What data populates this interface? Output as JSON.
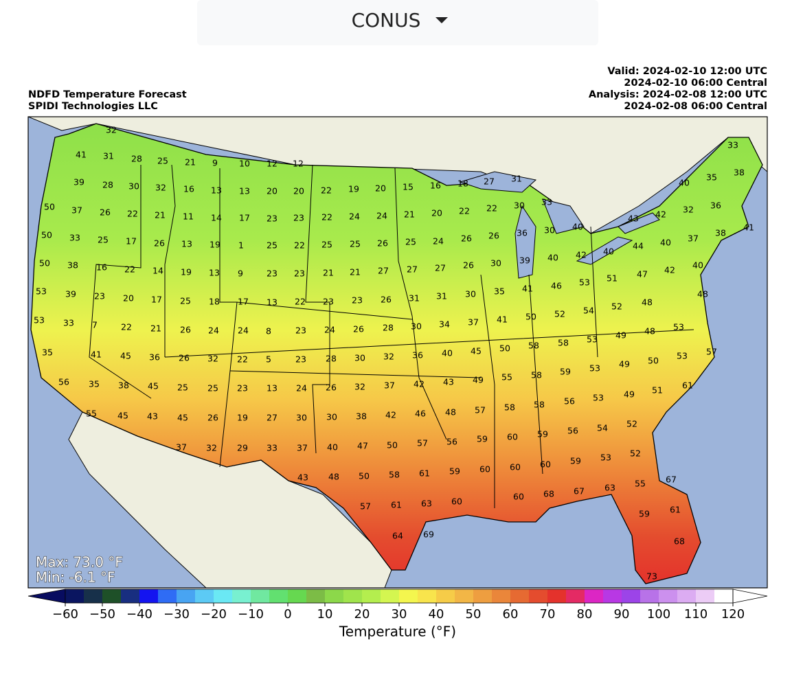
{
  "header": {
    "region_button": "CONUS"
  },
  "map": {
    "title": "NDFD Temperature Forecast",
    "source": "SPIDI Technologies LLC",
    "valid_utc": "Valid: 2024-02-10 12:00 UTC",
    "valid_local": "2024-02-10 06:00 Central",
    "analysis_utc": "Analysis: 2024-02-08 12:00 UTC",
    "analysis_local": "2024-02-08 06:00 Central",
    "max_label": "Max: 73.0 °F",
    "min_label": "Min: -6.1 °F",
    "station_values": [
      32,
      41,
      31,
      28,
      25,
      21,
      9,
      10,
      12,
      12,
      39,
      28,
      30,
      32,
      16,
      13,
      13,
      20,
      20,
      22,
      19,
      20,
      15,
      16,
      18,
      27,
      31,
      33,
      40,
      35,
      38,
      50,
      37,
      26,
      22,
      21,
      11,
      14,
      17,
      23,
      23,
      22,
      24,
      24,
      21,
      20,
      22,
      22,
      30,
      33,
      43,
      42,
      32,
      36,
      41,
      50,
      33,
      25,
      17,
      26,
      13,
      19,
      1,
      25,
      22,
      25,
      25,
      26,
      25,
      24,
      26,
      26,
      36,
      30,
      40,
      44,
      40,
      37,
      38,
      50,
      38,
      16,
      22,
      14,
      19,
      13,
      9,
      23,
      23,
      21,
      21,
      27,
      27,
      27,
      26,
      30,
      39,
      40,
      42,
      40,
      47,
      42,
      40,
      53,
      39,
      23,
      20,
      17,
      25,
      18,
      17,
      13,
      22,
      23,
      23,
      26,
      31,
      31,
      30,
      35,
      41,
      46,
      53,
      51,
      48,
      48,
      53,
      33,
      7,
      22,
      21,
      26,
      24,
      24,
      8,
      23,
      24,
      26,
      28,
      30,
      34,
      37,
      41,
      50,
      52,
      54,
      52,
      48,
      53,
      35,
      41,
      45,
      36,
      26,
      32,
      22,
      5,
      23,
      28,
      30,
      32,
      36,
      40,
      45,
      50,
      58,
      58,
      53,
      49,
      50,
      53,
      57,
      56,
      35,
      38,
      45,
      25,
      25,
      23,
      13,
      24,
      26,
      32,
      37,
      42,
      43,
      49,
      55,
      58,
      59,
      53,
      49,
      61,
      51,
      49,
      53,
      56,
      55,
      45,
      43,
      45,
      26,
      19,
      27,
      30,
      30,
      38,
      42,
      46,
      48,
      57,
      58,
      58,
      54,
      52,
      37,
      32,
      29,
      33,
      37,
      40,
      47,
      50,
      57,
      56,
      59,
      60,
      59,
      56,
      52,
      53,
      59,
      60,
      60,
      60,
      59,
      61,
      58,
      50,
      48,
      43,
      55,
      63,
      67,
      68,
      60,
      60,
      63,
      61,
      57,
      67,
      61,
      59,
      69,
      64,
      68,
      73
    ]
  },
  "colorbar": {
    "label": "Temperature (°F)",
    "range": [
      -60,
      120
    ],
    "ticks": [
      {
        "value": -60,
        "label": "−60"
      },
      {
        "value": -50,
        "label": "−50"
      },
      {
        "value": -40,
        "label": "−40"
      },
      {
        "value": -30,
        "label": "−30"
      },
      {
        "value": -20,
        "label": "−20"
      },
      {
        "value": -10,
        "label": "−10"
      },
      0,
      10,
      20,
      30,
      40,
      50,
      60,
      70,
      80,
      90,
      100,
      110,
      120
    ],
    "under_color": "#080c60",
    "over_color": "#ffffff",
    "colors": [
      "#0a1560",
      "#17304a",
      "#1e5028",
      "#182e80",
      "#1414f0",
      "#2f6cf5",
      "#48a4f2",
      "#5ccaf5",
      "#6ae8f4",
      "#78f0d0",
      "#70e8a0",
      "#62e070",
      "#66d850",
      "#7cbc46",
      "#8cd84a",
      "#a0e44c",
      "#b4ee4e",
      "#d4f650",
      "#f4f64e",
      "#f8e44c",
      "#f6cc48",
      "#f2b646",
      "#ee9e40",
      "#ea863a",
      "#e66a32",
      "#e44c2e",
      "#e4322c",
      "#e42a64",
      "#dc26c4",
      "#b838e4",
      "#9c44e8",
      "#b872e8",
      "#cc90ee",
      "#dcacf2",
      "#ecccf6",
      "#ffffff"
    ]
  }
}
